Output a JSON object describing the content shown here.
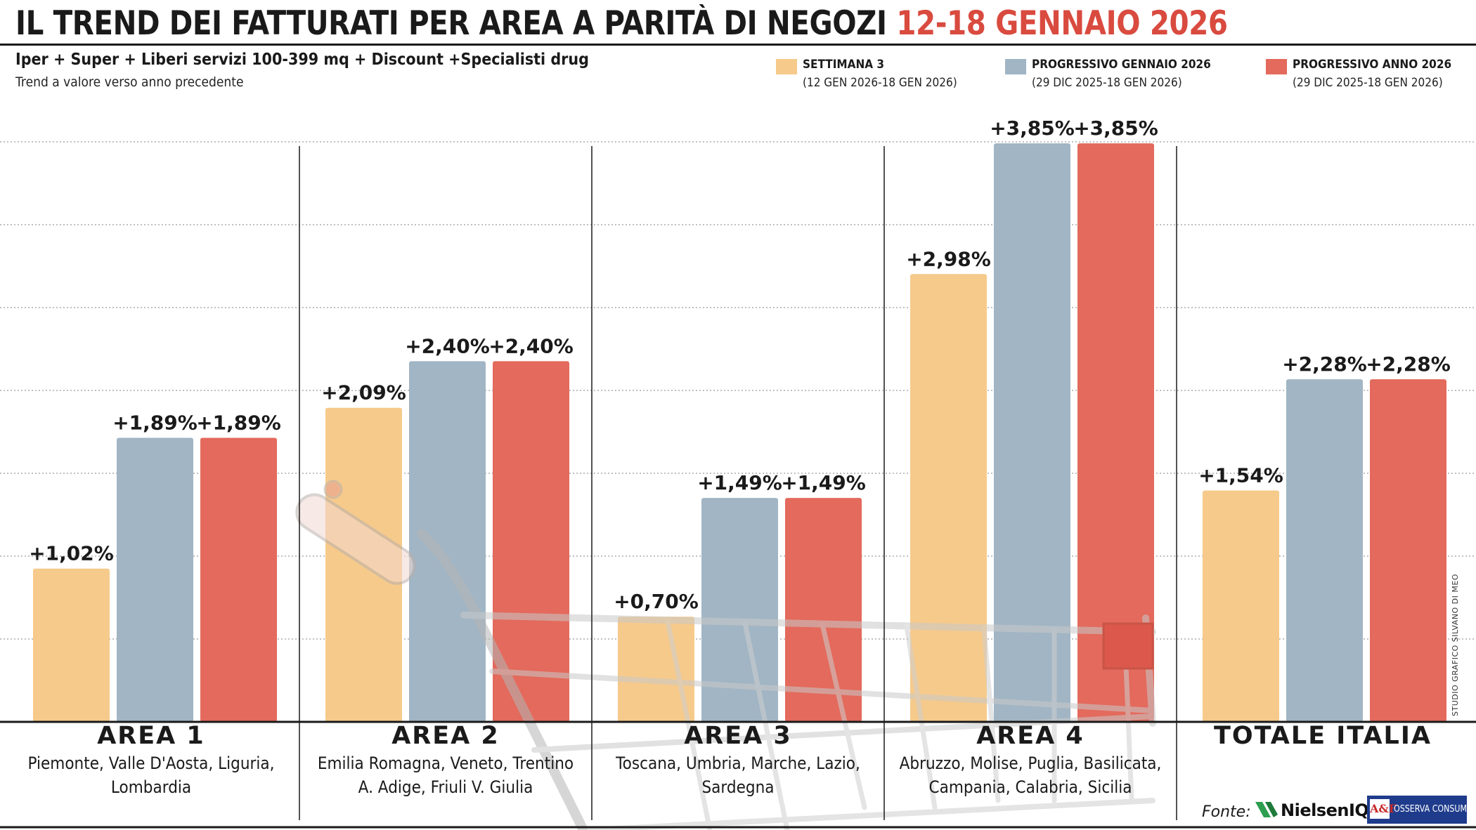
{
  "header": {
    "title_main": "IL TREND DEI FATTURATI PER AREA A PARITÀ DI NEGOZI",
    "title_highlight": "12-18 GENNAIO 2026",
    "subtitle": "Iper + Super + Liberi servizi 100-399 mq + Discount +Specialisti drug",
    "note": "Trend a valore verso anno precedente"
  },
  "legend": [
    {
      "name": "SETTIMANA 3",
      "sub": "(12 GEN 2026-18 GEN 2026)",
      "color": "#f6ca8b"
    },
    {
      "name": "PROGRESSIVO GENNAIO 2026",
      "sub": "(29 DIC 2025-18 GEN 2026)",
      "color": "#a1b5c4"
    },
    {
      "name": "PROGRESSIVO ANNO 2026",
      "sub": "(29 DIC 2025-18 GEN 2026)",
      "color": "#e36a5c"
    }
  ],
  "chart_data": {
    "type": "bar",
    "title": "IL TREND DEI FATTURATI PER AREA A PARITÀ DI NEGOZI 12-18 GENNAIO 2026",
    "categories": [
      "AREA 1",
      "AREA 2",
      "AREA 3",
      "AREA 4",
      "TOTALE ITALIA"
    ],
    "category_subtitles": [
      "Piemonte, Valle D'Aosta, Liguria, Lombardia",
      "Emilia Romagna, Veneto, Trentino A. Adige, Friuli V. Giulia",
      "Toscana, Umbria, Marche, Lazio, Sardegna",
      "Abruzzo, Molise, Puglia, Basilicata, Campania, Calabria, Sicilia",
      ""
    ],
    "series": [
      {
        "name": "SETTIMANA 3",
        "values": [
          1.02,
          2.09,
          0.7,
          2.98,
          1.54
        ],
        "labels": [
          "+1,02%",
          "+2,09%",
          "+0,70%",
          "+2,98%",
          "+1,54%"
        ]
      },
      {
        "name": "PROGRESSIVO GENNAIO 2026",
        "values": [
          1.89,
          2.4,
          1.49,
          3.85,
          2.28
        ],
        "labels": [
          "+1,89%",
          "+2,40%",
          "+1,49%",
          "+3,85%",
          "+2,28%"
        ]
      },
      {
        "name": "PROGRESSIVO ANNO 2026",
        "values": [
          1.89,
          2.4,
          1.49,
          3.85,
          2.28
        ],
        "labels": [
          "+1,89%",
          "+2,40%",
          "+1,49%",
          "+3,85%",
          "+2,28%"
        ]
      }
    ],
    "ylim": [
      0,
      4.1
    ],
    "grid": true,
    "legend_position": "top-right"
  },
  "credit": "STUDIO GRAFICO SILVANO DI MEO",
  "source": {
    "label": "Fonte:",
    "nielsen": "NielsenIQ",
    "osserva": "OSSERVA CONSUMI",
    "osserva_mark": "A&F"
  }
}
